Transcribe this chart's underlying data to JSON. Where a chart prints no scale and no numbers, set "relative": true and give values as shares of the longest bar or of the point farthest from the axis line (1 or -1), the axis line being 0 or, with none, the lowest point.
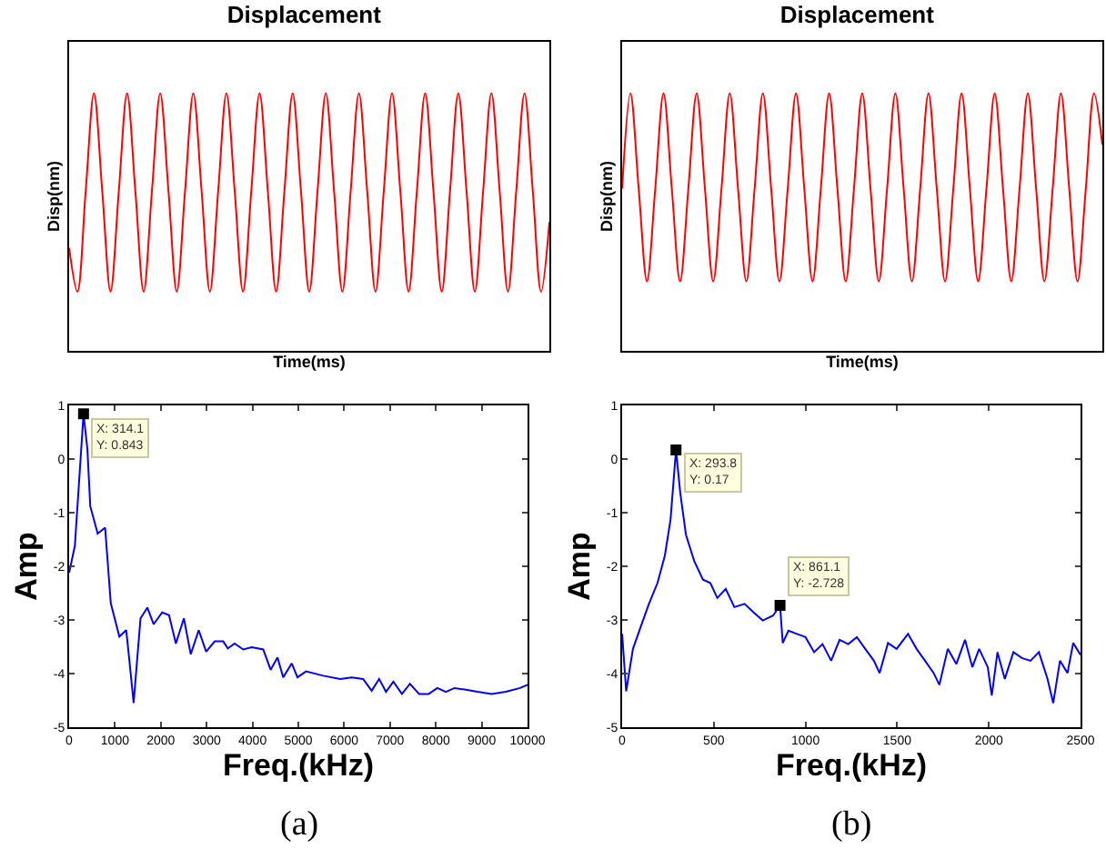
{
  "chart_data": [
    {
      "type": "line",
      "title": "Displacement",
      "xlabel": "Time(ms)",
      "ylabel": "Disp(nm)",
      "relative": true,
      "categories": [
        null,
        null,
        null,
        null,
        null,
        null,
        null,
        null,
        null,
        null,
        null,
        null,
        null,
        null,
        null,
        null,
        null,
        null,
        null,
        null,
        null,
        null,
        null,
        null,
        null,
        null,
        null,
        null,
        null,
        null,
        null,
        null,
        null,
        null,
        null,
        null,
        null,
        null,
        null,
        null,
        null,
        null,
        null,
        null,
        null,
        null,
        null,
        null,
        null,
        null,
        null,
        null,
        null,
        null,
        null,
        null,
        null,
        null,
        null
      ],
      "series": [
        {
          "color": "#ff0000",
          "values": [
            0.4,
            0.23,
            0.62,
            1,
            0.62,
            0.23,
            0.62,
            1,
            0.62,
            0.23,
            0.62,
            1,
            0.62,
            0.23,
            0.62,
            1,
            0.62,
            0.23,
            0.62,
            1,
            0.62,
            0.23,
            0.62,
            1,
            0.62,
            0.23,
            0.62,
            1,
            0.62,
            0.23,
            0.62,
            1,
            0.62,
            0.23,
            0.62,
            1,
            0.62,
            0.23,
            0.62,
            1,
            0.62,
            0.23,
            0.62,
            1,
            0.62,
            0.23,
            0.62,
            1,
            0.62,
            0.23,
            0.62,
            1,
            0.62,
            0.23,
            0.62,
            1,
            0.62,
            0.23,
            0.5
          ]
        }
      ]
    },
    {
      "type": "line",
      "title": "Displacement",
      "xlabel": "Time(ms)",
      "ylabel": "Disp(nm)",
      "relative": true,
      "categories": [
        null,
        null,
        null,
        null,
        null,
        null,
        null,
        null,
        null,
        null,
        null,
        null,
        null,
        null,
        null,
        null,
        null,
        null,
        null,
        null,
        null,
        null,
        null,
        null,
        null,
        null,
        null,
        null,
        null,
        null,
        null,
        null,
        null,
        null,
        null,
        null,
        null,
        null,
        null,
        null,
        null,
        null,
        null,
        null,
        null,
        null,
        null,
        null,
        null,
        null,
        null,
        null,
        null,
        null,
        null,
        null,
        null,
        null,
        null
      ],
      "series": [
        {
          "color": "#ff0000",
          "values": [
            0.63,
            1,
            0.63,
            0.27,
            0.63,
            1,
            0.63,
            0.27,
            0.63,
            1,
            0.63,
            0.27,
            0.63,
            1,
            0.63,
            0.27,
            0.63,
            1,
            0.63,
            0.27,
            0.63,
            1,
            0.63,
            0.27,
            0.63,
            1,
            0.63,
            0.27,
            0.63,
            1,
            0.63,
            0.27,
            0.63,
            1,
            0.63,
            0.27,
            0.63,
            1,
            0.63,
            0.27,
            0.63,
            1,
            0.63,
            0.27,
            0.63,
            1,
            0.63,
            0.27,
            0.63,
            1,
            0.63,
            0.27,
            0.63,
            1,
            0.63,
            0.27,
            0.63,
            1,
            0.8
          ]
        }
      ]
    },
    {
      "type": "line",
      "xlabel": "Freq.(kHz)",
      "ylabel": "Amp",
      "xlim": [
        0,
        10000
      ],
      "xticks": [
        0,
        1000,
        2000,
        3000,
        4000,
        5000,
        6000,
        7000,
        8000,
        9000,
        10000
      ],
      "ylim": [
        -5,
        1
      ],
      "yticks": [
        -5,
        -4,
        -3,
        -2,
        -1,
        0,
        1
      ],
      "annotations": [
        {
          "text": "X: 314.1\nY: 0.843",
          "x": 314.1,
          "y": 0.843
        },
        "(a)"
      ],
      "series": [
        {
          "color": "#0000ff",
          "x": [
            0,
            125,
            314.1,
            398,
            461,
            623,
            785,
            909,
            1096,
            1245,
            1308,
            1407,
            1557,
            1706,
            1843,
            2030,
            2179,
            2329,
            2503,
            2653,
            2827,
            2989,
            3176,
            3362,
            3462,
            3611,
            3798,
            3985,
            4234,
            4396,
            4545,
            4670,
            4857,
            4981,
            5168,
            5542,
            5915,
            6164,
            6413,
            6600,
            6762,
            6912,
            7073,
            7260,
            7435,
            7634,
            7846,
            8032,
            8219,
            8406,
            8655,
            8904,
            9215,
            9527,
            9838,
            10000
          ],
          "values": [
            -2.12,
            -1.62,
            0.843,
            0.19,
            -0.88,
            -1.39,
            -1.28,
            -2.69,
            -3.31,
            -3.19,
            -3.7,
            -4.55,
            -2.97,
            -2.77,
            -3.08,
            -2.86,
            -2.91,
            -3.44,
            -2.97,
            -3.64,
            -3.19,
            -3.59,
            -3.4,
            -3.4,
            -3.53,
            -3.44,
            -3.55,
            -3.51,
            -3.55,
            -3.93,
            -3.7,
            -4.07,
            -3.81,
            -4.07,
            -3.96,
            -4.04,
            -4.1,
            -4.07,
            -4.1,
            -4.32,
            -4.1,
            -4.34,
            -4.15,
            -4.38,
            -4.19,
            -4.38,
            -4.38,
            -4.27,
            -4.34,
            -4.27,
            -4.3,
            -4.34,
            -4.38,
            -4.34,
            -4.27,
            -4.21
          ]
        },
        {
          "type": "scatter",
          "marker": "square",
          "color": "#000000",
          "x": [
            314.1
          ],
          "values": [
            0.843
          ]
        }
      ]
    },
    {
      "type": "line",
      "xlabel": "Freq.(kHz)",
      "ylabel": "Amp",
      "xlim": [
        0,
        2500
      ],
      "xticks": [
        0,
        500,
        1000,
        1500,
        2000,
        2500
      ],
      "ylim": [
        -5,
        1
      ],
      "yticks": [
        -5,
        -4,
        -3,
        -2,
        -1,
        0,
        1
      ],
      "annotations": [
        {
          "text": "X: 293.8\nY: 0.17",
          "x": 293.8,
          "y": 0.17
        },
        {
          "text": "X: 861.1\nY: -2.728",
          "x": 861.1,
          "y": -2.728
        },
        "(b)"
      ],
      "series": [
        {
          "color": "#0000ff",
          "x": [
            0,
            22,
            59,
            99,
            146,
            193,
            233,
            264,
            293.8,
            317,
            348,
            394,
            441,
            481,
            519,
            565,
            612,
            668,
            720,
            767,
            823,
            861.1,
            876,
            907,
            953,
            1000,
            1047,
            1093,
            1140,
            1186,
            1233,
            1280,
            1326,
            1373,
            1404,
            1450,
            1497,
            1559,
            1606,
            1652,
            1699,
            1730,
            1776,
            1823,
            1870,
            1910,
            1947,
            1994,
            2016,
            2047,
            2087,
            2134,
            2180,
            2227,
            2273,
            2320,
            2351,
            2388,
            2429,
            2460,
            2500
          ],
          "values": [
            -3.26,
            -4.33,
            -3.54,
            -3.15,
            -2.7,
            -2.31,
            -1.8,
            -1.13,
            0.17,
            -0.63,
            -1.41,
            -1.91,
            -2.25,
            -2.31,
            -2.59,
            -2.42,
            -2.76,
            -2.7,
            -2.87,
            -3.01,
            -2.92,
            -2.728,
            -3.43,
            -3.2,
            -3.26,
            -3.32,
            -3.6,
            -3.45,
            -3.76,
            -3.37,
            -3.45,
            -3.32,
            -3.54,
            -3.76,
            -3.99,
            -3.43,
            -3.54,
            -3.26,
            -3.54,
            -3.76,
            -3.99,
            -4.21,
            -3.54,
            -3.82,
            -3.37,
            -3.88,
            -3.54,
            -3.88,
            -4.41,
            -3.6,
            -4.1,
            -3.6,
            -3.71,
            -3.76,
            -3.6,
            -4.1,
            -4.55,
            -3.76,
            -3.99,
            -3.43,
            -3.65
          ]
        },
        {
          "type": "scatter",
          "marker": "square",
          "color": "#000000",
          "x": [
            293.8,
            861.1
          ],
          "values": [
            0.17,
            -2.728
          ]
        }
      ]
    }
  ]
}
